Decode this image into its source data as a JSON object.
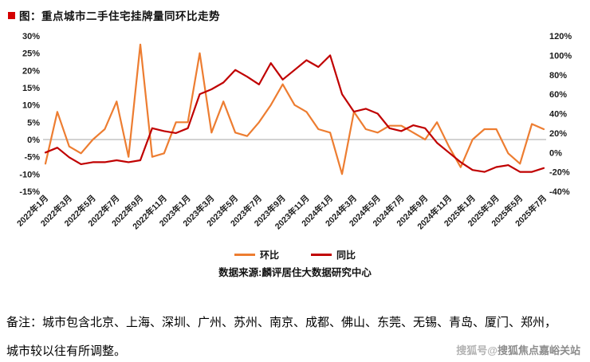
{
  "title": "图：重点城市二手住宅挂牌量同环比走势",
  "source": "数据来源:麟评居住大数据研究中心",
  "note_lines": [
    "备注：城市包含北京、上海、深圳、广州、苏州、南京、成都、佛山、东莞、无锡、青岛、厦门、郑州，",
    "城市较以往有所调整。"
  ],
  "watermark": {
    "prefix": "搜狐号@",
    "name": "搜狐焦点嘉峪关站"
  },
  "colors": {
    "mom": "#ED7D31",
    "yoy": "#C00000",
    "title_bullet": "#d40000",
    "zero_line": "#a6a6a6"
  },
  "legend": [
    {
      "label": "环比",
      "color": "#ED7D31"
    },
    {
      "label": "同比",
      "color": "#C00000"
    }
  ],
  "chart_data": {
    "type": "line",
    "title": "重点城市二手住宅挂牌量同环比走势",
    "grid": false,
    "legend_position": "bottom",
    "x_tick_every": 2,
    "x": [
      "2022年1月",
      "2022年2月",
      "2022年3月",
      "2022年4月",
      "2022年5月",
      "2022年6月",
      "2022年7月",
      "2022年8月",
      "2022年9月",
      "2022年10月",
      "2022年11月",
      "2022年12月",
      "2023年1月",
      "2023年2月",
      "2023年3月",
      "2023年4月",
      "2023年5月",
      "2023年6月",
      "2023年7月",
      "2023年8月",
      "2023年9月",
      "2023年10月",
      "2023年11月",
      "2023年12月",
      "2024年1月",
      "2024年2月",
      "2024年3月",
      "2024年4月",
      "2024年5月",
      "2024年6月",
      "2024年7月",
      "2024年8月",
      "2024年9月",
      "2024年10月",
      "2024年11月",
      "2024年12月",
      "2025年1月",
      "2025年2月",
      "2025年3月",
      "2025年4月",
      "2025年5月",
      "2025年6月",
      "2025年7月"
    ],
    "series": [
      {
        "name": "环比",
        "axis": "left",
        "color": "#ED7D31",
        "values": [
          -7,
          8,
          -2,
          -4,
          0,
          3,
          11,
          -5,
          27.5,
          -5,
          -4,
          5,
          5,
          25,
          2,
          11,
          2,
          1,
          5,
          10,
          16,
          10,
          8,
          3,
          2,
          -10,
          8,
          3,
          2,
          4,
          4,
          2,
          0,
          5,
          -2,
          -8,
          0,
          3,
          3,
          -4,
          -7,
          4.5,
          3
        ]
      },
      {
        "name": "同比",
        "axis": "right",
        "color": "#C00000",
        "values": [
          0,
          5,
          -5,
          -12,
          -10,
          -10,
          -8,
          -10,
          -8,
          25,
          22,
          20,
          25,
          60,
          65,
          72,
          85,
          78,
          70,
          92,
          75,
          85,
          95,
          88,
          100,
          60,
          42,
          45,
          40,
          25,
          22,
          28,
          25,
          10,
          0,
          -10,
          -18,
          -20,
          -15,
          -13,
          -20,
          -20,
          -16
        ]
      }
    ],
    "left_axis": {
      "min": -15,
      "max": 30,
      "unit": "%",
      "ticks": [
        "30%",
        "25%",
        "20%",
        "15%",
        "10%",
        "5%",
        "0%",
        "-5%",
        "-10%",
        "-15%"
      ]
    },
    "right_axis": {
      "min": -40,
      "max": 120,
      "unit": "%",
      "ticks": [
        "120%",
        "100%",
        "80%",
        "60%",
        "40%",
        "20%",
        "0%",
        "-20%",
        "-40%"
      ]
    }
  }
}
